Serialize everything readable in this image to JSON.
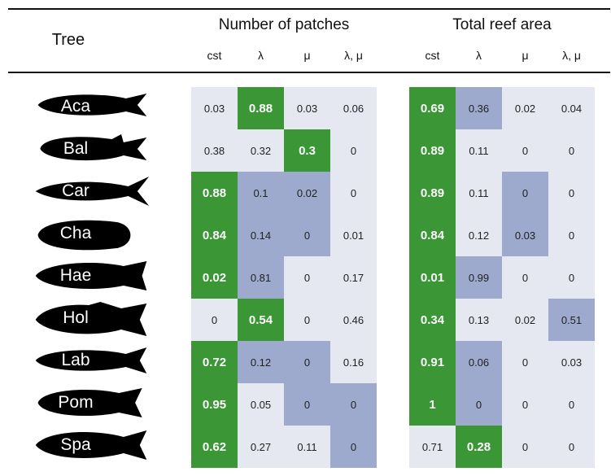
{
  "header": {
    "tree_label": "Tree",
    "group_patches": "Number of patches",
    "group_area": "Total reef area",
    "columns": [
      "cst",
      "λ",
      "μ",
      "λ, μ"
    ]
  },
  "colors": {
    "light": "#e6e8f1",
    "medium": "#9daacd",
    "green": "#3b9635"
  },
  "rows": [
    {
      "tree": "Aca",
      "fish_icon": "surgeonfish-silhouette-icon",
      "patches": [
        "0.03",
        "0.88",
        "0.03",
        "0.06"
      ],
      "patches_shade": [
        "l",
        "g",
        "l",
        "l"
      ],
      "area": [
        "0.69",
        "0.36",
        "0.02",
        "0.04"
      ],
      "area_shade": [
        "g",
        "m",
        "l",
        "l"
      ]
    },
    {
      "tree": "Bal",
      "fish_icon": "triggerfish-silhouette-icon",
      "patches": [
        "0.38",
        "0.32",
        "0.3",
        "0"
      ],
      "patches_shade": [
        "l",
        "l",
        "g",
        "l"
      ],
      "area": [
        "0.89",
        "0.11",
        "0",
        "0"
      ],
      "area_shade": [
        "g",
        "l",
        "l",
        "l"
      ]
    },
    {
      "tree": "Car",
      "fish_icon": "jack-silhouette-icon",
      "patches": [
        "0.88",
        "0.1",
        "0.02",
        "0"
      ],
      "patches_shade": [
        "g",
        "m",
        "m",
        "l"
      ],
      "area": [
        "0.89",
        "0.11",
        "0",
        "0"
      ],
      "area_shade": [
        "g",
        "l",
        "m",
        "l"
      ]
    },
    {
      "tree": "Cha",
      "fish_icon": "butterflyfish-silhouette-icon",
      "patches": [
        "0.84",
        "0.14",
        "0",
        "0.01"
      ],
      "patches_shade": [
        "g",
        "m",
        "m",
        "l"
      ],
      "area": [
        "0.84",
        "0.12",
        "0.03",
        "0"
      ],
      "area_shade": [
        "g",
        "l",
        "m",
        "l"
      ]
    },
    {
      "tree": "Hae",
      "fish_icon": "grunt-silhouette-icon",
      "patches": [
        "0.02",
        "0.81",
        "0",
        "0.17"
      ],
      "patches_shade": [
        "g",
        "m",
        "l",
        "l"
      ],
      "area": [
        "0.01",
        "0.99",
        "0",
        "0"
      ],
      "area_shade": [
        "g",
        "m",
        "l",
        "l"
      ]
    },
    {
      "tree": "Hol",
      "fish_icon": "squirrelfish-silhouette-icon",
      "patches": [
        "0",
        "0.54",
        "0",
        "0.46"
      ],
      "patches_shade": [
        "l",
        "g",
        "l",
        "l"
      ],
      "area": [
        "0.34",
        "0.13",
        "0.02",
        "0.51"
      ],
      "area_shade": [
        "g",
        "l",
        "l",
        "m"
      ]
    },
    {
      "tree": "Lab",
      "fish_icon": "wrasse-silhouette-icon",
      "patches": [
        "0.72",
        "0.12",
        "0",
        "0.16"
      ],
      "patches_shade": [
        "g",
        "m",
        "m",
        "l"
      ],
      "area": [
        "0.91",
        "0.06",
        "0",
        "0.03"
      ],
      "area_shade": [
        "g",
        "m",
        "l",
        "l"
      ]
    },
    {
      "tree": "Pom",
      "fish_icon": "damselfish-silhouette-icon",
      "patches": [
        "0.95",
        "0.05",
        "0",
        "0"
      ],
      "patches_shade": [
        "g",
        "l",
        "m",
        "m"
      ],
      "area": [
        "1",
        "0",
        "0",
        "0"
      ],
      "area_shade": [
        "g",
        "m",
        "l",
        "l"
      ]
    },
    {
      "tree": "Spa",
      "fish_icon": "porgy-silhouette-icon",
      "patches": [
        "0.62",
        "0.27",
        "0.11",
        "0"
      ],
      "patches_shade": [
        "g",
        "l",
        "l",
        "m"
      ],
      "area": [
        "0.71",
        "0.28",
        "0",
        "0"
      ],
      "area_shade": [
        "l",
        "g",
        "l",
        "l"
      ]
    }
  ]
}
